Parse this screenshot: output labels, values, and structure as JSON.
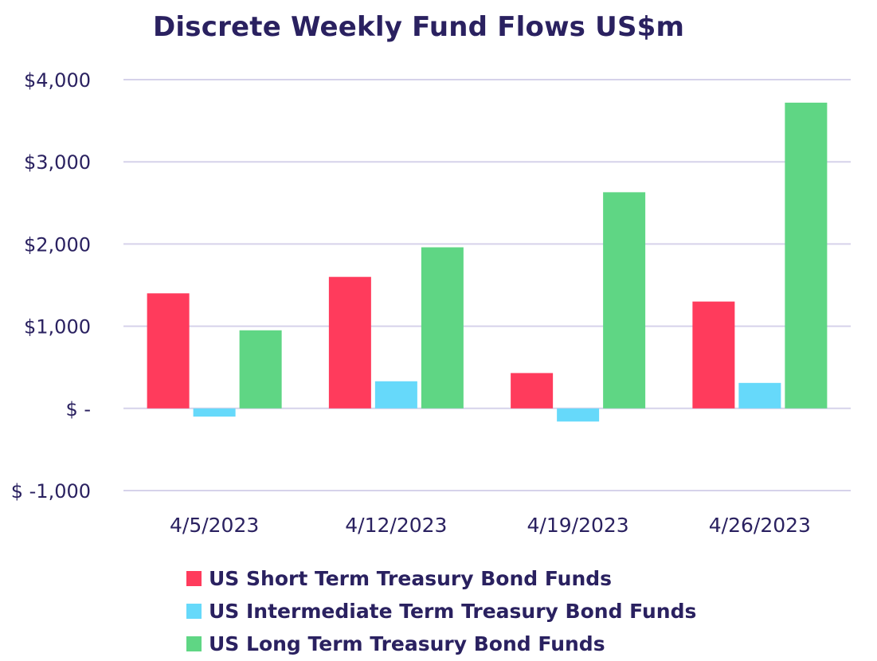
{
  "chart_data": {
    "type": "bar",
    "title": "Discrete Weekly Fund Flows US$m",
    "categories": [
      "4/5/2023",
      "4/12/2023",
      "4/19/2023",
      "4/26/2023"
    ],
    "series": [
      {
        "name": "US Short Term Treasury Bond Funds",
        "color": "#ff3b5c",
        "values": [
          1400,
          1600,
          430,
          1300
        ]
      },
      {
        "name": "US Intermediate Term Treasury Bond Funds",
        "color": "#66d9fa",
        "values": [
          -100,
          330,
          -160,
          310
        ]
      },
      {
        "name": "US Long Term Treasury Bond Funds",
        "color": "#5fd684",
        "values": [
          950,
          1960,
          2630,
          3720
        ]
      }
    ],
    "yticks": [
      {
        "value": 4000,
        "label": "$4,000"
      },
      {
        "value": 3000,
        "label": "$3,000"
      },
      {
        "value": 2000,
        "label": "$2,000"
      },
      {
        "value": 1000,
        "label": "$1,000"
      },
      {
        "value": 0,
        "label": "$ -"
      },
      {
        "value": -1000,
        "label": "$ -1,000"
      }
    ],
    "ylim": [
      -1000,
      4000
    ],
    "grid": true,
    "legend_position": "bottom"
  }
}
